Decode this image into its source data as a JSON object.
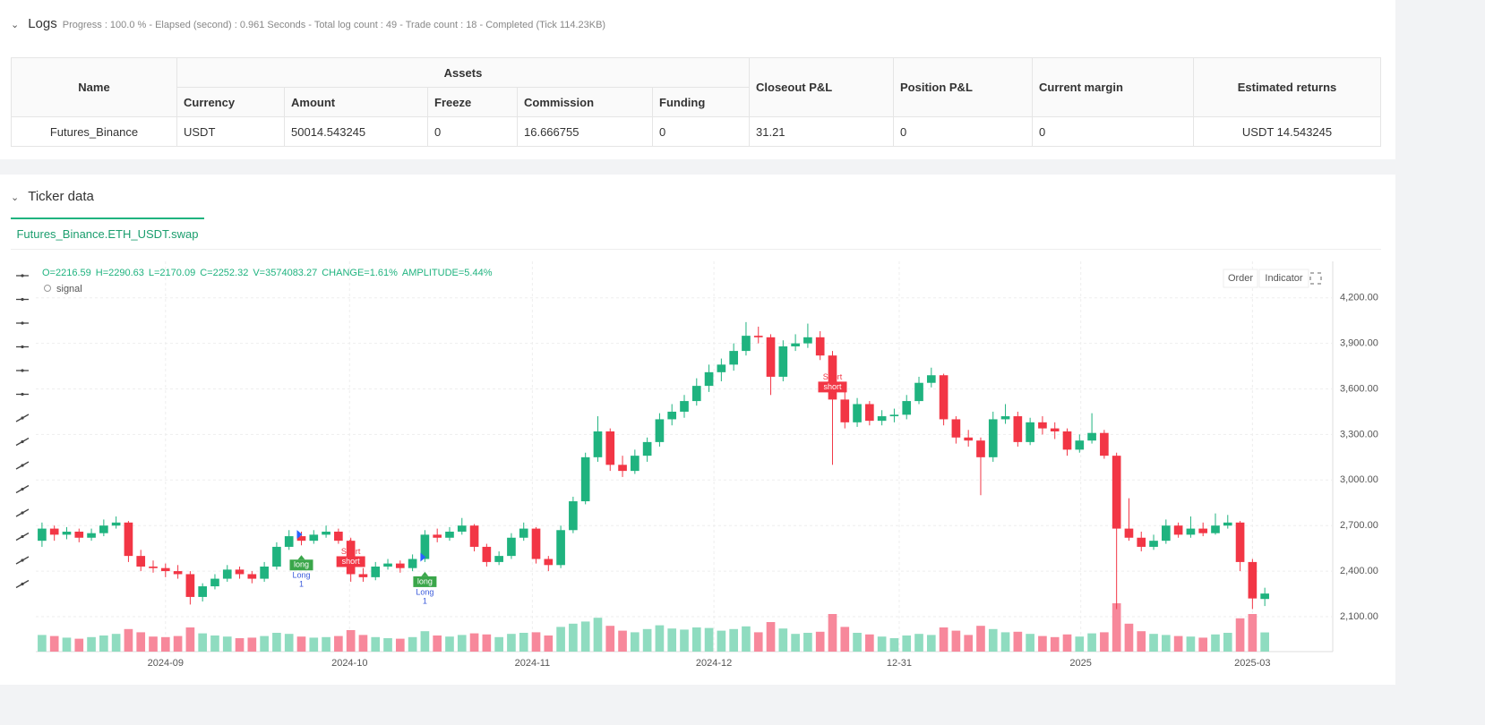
{
  "logs": {
    "title": "Logs",
    "summary": "Progress : 100.0 % - Elapsed (second) : 0.961 Seconds - Total log count : 49 - Trade count : 18 - Completed (Tick 114.23KB)"
  },
  "table": {
    "name_header": "Name",
    "group_header": "Assets",
    "sub_headers": [
      "Currency",
      "Amount",
      "Freeze",
      "Commission",
      "Funding"
    ],
    "other_headers": [
      "Closeout P&L",
      "Position P&L",
      "Current margin",
      "Estimated returns"
    ],
    "row": [
      "Futures_Binance",
      "USDT",
      "50014.543245",
      "0",
      "16.666755",
      "0",
      "31.21",
      "0",
      "0",
      "USDT 14.543245"
    ]
  },
  "ticker": {
    "title": "Ticker data",
    "tab": "Futures_Binance.ETH_USDT.swap"
  },
  "chart_data": {
    "type": "candlestick",
    "info": [
      "O=2216.59",
      "H=2290.63",
      "L=2170.09",
      "C=2252.32",
      "V=3574083.27",
      "CHANGE=1.61%",
      "AMPLITUDE=5.44%"
    ],
    "legend": "signal",
    "buttons": [
      "Order",
      "Indicator"
    ],
    "up_color": "#1fb37f",
    "down_color": "#f23645",
    "up_volume_color": "#8fdcc0",
    "down_volume_color": "#f7889b",
    "ylim": [
      1870,
      4440
    ],
    "yticks": [
      {
        "value": 2100,
        "label": "2,100.00"
      },
      {
        "value": 2400,
        "label": "2,400.00"
      },
      {
        "value": 2700,
        "label": "2,700.00"
      },
      {
        "value": 3000,
        "label": "3,000.00"
      },
      {
        "value": 3300,
        "label": "3,300.00"
      },
      {
        "value": 3600,
        "label": "3,600.00"
      },
      {
        "value": 3900,
        "label": "3,900.00"
      },
      {
        "value": 4200,
        "label": "4,200.00"
      }
    ],
    "xlim": [
      -0.5,
      104.5
    ],
    "xticks": [
      {
        "value": 10,
        "label": "2024-09"
      },
      {
        "value": 24.9,
        "label": "2024-10"
      },
      {
        "value": 39.7,
        "label": "2024-11"
      },
      {
        "value": 54.4,
        "label": "2024-12"
      },
      {
        "value": 69.4,
        "label": "12-31"
      },
      {
        "value": 84.1,
        "label": "2025"
      },
      {
        "value": 98,
        "label": "2025-03"
      }
    ],
    "volume_lim": [
      0,
      10000000
    ],
    "grid": true,
    "candles": [
      [
        2600,
        2720,
        2560,
        2680,
        3100000
      ],
      [
        2680,
        2700,
        2600,
        2640,
        2900000
      ],
      [
        2640,
        2690,
        2610,
        2660,
        2600000
      ],
      [
        2660,
        2680,
        2590,
        2620,
        2400000
      ],
      [
        2620,
        2680,
        2600,
        2650,
        2700000
      ],
      [
        2650,
        2740,
        2630,
        2700,
        3000000
      ],
      [
        2700,
        2760,
        2680,
        2720,
        3300000
      ],
      [
        2720,
        2730,
        2460,
        2500,
        4200000
      ],
      [
        2500,
        2540,
        2400,
        2430,
        3600000
      ],
      [
        2430,
        2470,
        2390,
        2420,
        2800000
      ],
      [
        2420,
        2450,
        2360,
        2400,
        2700000
      ],
      [
        2400,
        2440,
        2350,
        2380,
        2900000
      ],
      [
        2380,
        2400,
        2180,
        2230,
        4500000
      ],
      [
        2230,
        2320,
        2200,
        2300,
        3400000
      ],
      [
        2300,
        2380,
        2280,
        2350,
        3000000
      ],
      [
        2350,
        2440,
        2330,
        2410,
        2800000
      ],
      [
        2410,
        2430,
        2350,
        2380,
        2500000
      ],
      [
        2380,
        2400,
        2320,
        2350,
        2600000
      ],
      [
        2350,
        2460,
        2330,
        2430,
        2900000
      ],
      [
        2430,
        2590,
        2410,
        2560,
        3500000
      ],
      [
        2560,
        2670,
        2540,
        2630,
        3300000
      ],
      [
        2630,
        2660,
        2570,
        2600,
        2800000
      ],
      [
        2600,
        2670,
        2580,
        2640,
        2600000
      ],
      [
        2640,
        2700,
        2620,
        2660,
        2700000
      ],
      [
        2660,
        2680,
        2580,
        2600,
        2900000
      ],
      [
        2600,
        2620,
        2330,
        2380,
        4000000
      ],
      [
        2380,
        2420,
        2330,
        2360,
        3100000
      ],
      [
        2360,
        2460,
        2340,
        2430,
        2700000
      ],
      [
        2430,
        2480,
        2410,
        2450,
        2500000
      ],
      [
        2450,
        2470,
        2390,
        2420,
        2400000
      ],
      [
        2420,
        2510,
        2400,
        2480,
        2700000
      ],
      [
        2480,
        2670,
        2460,
        2640,
        3800000
      ],
      [
        2640,
        2680,
        2590,
        2620,
        3000000
      ],
      [
        2620,
        2690,
        2600,
        2660,
        2800000
      ],
      [
        2660,
        2750,
        2640,
        2700,
        3100000
      ],
      [
        2700,
        2710,
        2530,
        2560,
        3400000
      ],
      [
        2560,
        2580,
        2430,
        2460,
        3200000
      ],
      [
        2460,
        2530,
        2440,
        2500,
        2700000
      ],
      [
        2500,
        2650,
        2480,
        2620,
        3300000
      ],
      [
        2620,
        2720,
        2600,
        2680,
        3500000
      ],
      [
        2680,
        2690,
        2450,
        2480,
        3600000
      ],
      [
        2480,
        2500,
        2400,
        2440,
        3000000
      ],
      [
        2440,
        2700,
        2420,
        2670,
        4600000
      ],
      [
        2670,
        2890,
        2650,
        2860,
        5200000
      ],
      [
        2860,
        3180,
        2840,
        3150,
        5600000
      ],
      [
        3150,
        3420,
        3120,
        3320,
        6300000
      ],
      [
        3320,
        3340,
        3060,
        3100,
        4800000
      ],
      [
        3100,
        3160,
        3020,
        3060,
        3900000
      ],
      [
        3060,
        3200,
        3040,
        3160,
        3600000
      ],
      [
        3160,
        3280,
        3120,
        3250,
        4200000
      ],
      [
        3250,
        3440,
        3220,
        3400,
        4900000
      ],
      [
        3400,
        3500,
        3360,
        3450,
        4300000
      ],
      [
        3450,
        3560,
        3410,
        3520,
        4100000
      ],
      [
        3520,
        3670,
        3490,
        3620,
        4500000
      ],
      [
        3620,
        3760,
        3580,
        3710,
        4400000
      ],
      [
        3710,
        3800,
        3650,
        3760,
        3900000
      ],
      [
        3760,
        3900,
        3720,
        3850,
        4200000
      ],
      [
        3850,
        4040,
        3820,
        3950,
        4700000
      ],
      [
        3950,
        4010,
        3900,
        3940,
        3600000
      ],
      [
        3940,
        3960,
        3560,
        3680,
        5500000
      ],
      [
        3680,
        3920,
        3650,
        3880,
        4300000
      ],
      [
        3880,
        3960,
        3850,
        3900,
        3300000
      ],
      [
        3900,
        4030,
        3870,
        3940,
        3500000
      ],
      [
        3940,
        3980,
        3790,
        3820,
        3700000
      ],
      [
        3820,
        3850,
        3100,
        3530,
        7000000
      ],
      [
        3530,
        3580,
        3340,
        3380,
        4600000
      ],
      [
        3380,
        3540,
        3350,
        3500,
        3500000
      ],
      [
        3500,
        3520,
        3360,
        3390,
        3200000
      ],
      [
        3390,
        3460,
        3360,
        3420,
        2800000
      ],
      [
        3420,
        3470,
        3380,
        3430,
        2500000
      ],
      [
        3430,
        3560,
        3400,
        3520,
        3000000
      ],
      [
        3520,
        3680,
        3500,
        3640,
        3300000
      ],
      [
        3640,
        3740,
        3610,
        3690,
        3100000
      ],
      [
        3690,
        3700,
        3360,
        3400,
        4500000
      ],
      [
        3400,
        3420,
        3240,
        3280,
        3900000
      ],
      [
        3280,
        3330,
        3220,
        3260,
        3100000
      ],
      [
        3260,
        3280,
        2900,
        3150,
        4800000
      ],
      [
        3150,
        3450,
        3120,
        3400,
        4200000
      ],
      [
        3400,
        3500,
        3370,
        3420,
        3600000
      ],
      [
        3420,
        3450,
        3220,
        3250,
        3700000
      ],
      [
        3250,
        3410,
        3230,
        3380,
        3300000
      ],
      [
        3380,
        3420,
        3300,
        3340,
        2900000
      ],
      [
        3340,
        3380,
        3270,
        3320,
        2700000
      ],
      [
        3320,
        3340,
        3160,
        3200,
        3200000
      ],
      [
        3200,
        3300,
        3180,
        3260,
        2800000
      ],
      [
        3260,
        3440,
        3240,
        3310,
        3400000
      ],
      [
        3310,
        3330,
        3140,
        3160,
        3600000
      ],
      [
        3160,
        3180,
        2150,
        2680,
        9000000
      ],
      [
        2680,
        2880,
        2600,
        2620,
        5200000
      ],
      [
        2620,
        2660,
        2530,
        2560,
        3800000
      ],
      [
        2560,
        2640,
        2540,
        2600,
        3300000
      ],
      [
        2600,
        2740,
        2580,
        2700,
        3100000
      ],
      [
        2700,
        2720,
        2620,
        2640,
        2900000
      ],
      [
        2640,
        2760,
        2620,
        2680,
        2800000
      ],
      [
        2680,
        2720,
        2630,
        2650,
        2600000
      ],
      [
        2650,
        2780,
        2640,
        2700,
        3200000
      ],
      [
        2700,
        2770,
        2680,
        2720,
        3500000
      ],
      [
        2720,
        2730,
        2400,
        2460,
        6200000
      ],
      [
        2460,
        2480,
        2150,
        2220,
        7000000
      ],
      [
        2216.59,
        2290.63,
        2170.09,
        2252.32,
        3574083.27
      ]
    ],
    "signals": [
      {
        "side": "long",
        "index": 21,
        "tag": "long",
        "text": "Long",
        "qty": 1
      },
      {
        "side": "short",
        "index": 25,
        "tag": "short",
        "text": "Short",
        "qty": 1
      },
      {
        "side": "long",
        "index": 31,
        "tag": "long",
        "text": "Long",
        "qty": 1
      },
      {
        "side": "short",
        "index": 64,
        "tag": "short",
        "text": "Short",
        "qty": 1
      }
    ]
  }
}
